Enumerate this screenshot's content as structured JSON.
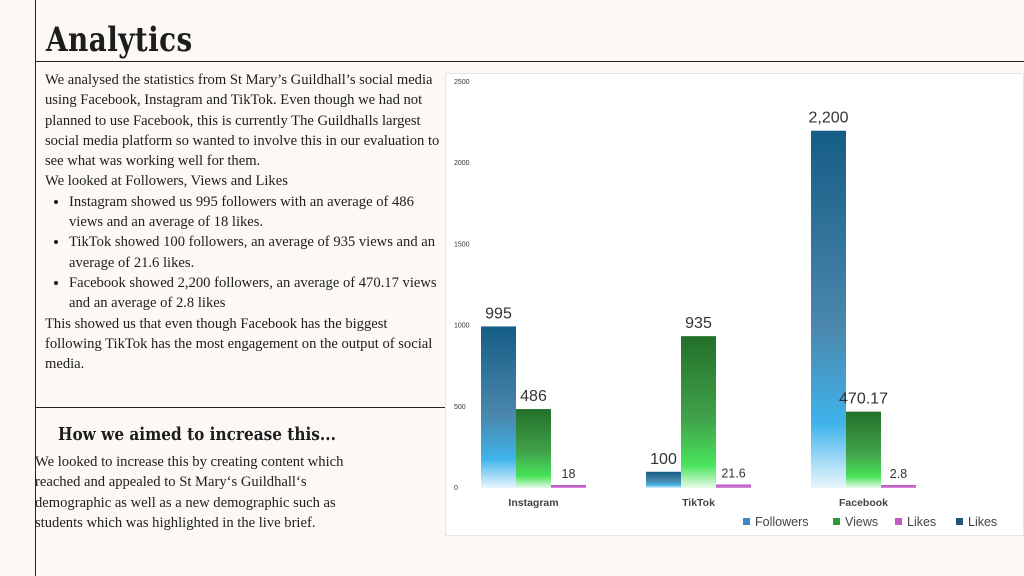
{
  "page": {
    "title": "Analytics",
    "intro": "We analysed the statistics from St Mary’s Guildhall’s social media using Facebook, Instagram and TikTok. Even though we had not planned to use Facebook, this is currently The Guildhalls largest social media platform so wanted to involve this in our evaluation to see what was working well for them.",
    "looked_at": "We looked at Followers, Views and Likes",
    "bullets": [
      "Instagram showed us 995 followers with an average of 486 views and an average of 18 likes.",
      "TikTok showed 100 followers, an average of 935 views and an average of 21.6 likes.",
      "Facebook showed 2,200 followers, an average of 470.17 views and an average of 2.8 likes"
    ],
    "conclusion": "This showed us that even though Facebook has the biggest following TikTok has the most engagement on the output of social media.",
    "subheading": "How we aimed to increase this...",
    "increase_text": "We looked to increase this by creating content which reached and appealed to St Mary‘s Guildhall‘s demographic as well as a new demographic such as students which was highlighted in the live brief."
  },
  "chart_data": {
    "type": "bar",
    "title": "",
    "xlabel": "",
    "ylabel": "",
    "categories": [
      "Instagram",
      "TikTok",
      "Facebook"
    ],
    "ylim": [
      0,
      2500
    ],
    "yticks": [
      "0",
      "500",
      "1000",
      "1500",
      "2000",
      "2500"
    ],
    "series": [
      {
        "name": "Followers",
        "values": [
          995,
          100,
          2200
        ],
        "labels": [
          "995",
          "100",
          "2,200"
        ],
        "color": "#1a5f87"
      },
      {
        "name": "Views",
        "values": [
          486,
          935,
          470.17
        ],
        "labels": [
          "486",
          "935",
          "470.17"
        ],
        "color": "#2a7d2e"
      },
      {
        "name": "Likes",
        "values": [
          18,
          21.6,
          2.8
        ],
        "labels": [
          "18",
          "21.6",
          "2.8"
        ],
        "color": "#b34fb8"
      }
    ],
    "legend": [
      {
        "name": "Followers",
        "color": "#3e86c4"
      },
      {
        "name": "Views",
        "color": "#2f9a3a"
      },
      {
        "name": "Likes",
        "color": "#c05cc4"
      },
      {
        "name": "Likes",
        "color": "#1f5678"
      }
    ],
    "legend_position": "bottom",
    "grid": false
  }
}
